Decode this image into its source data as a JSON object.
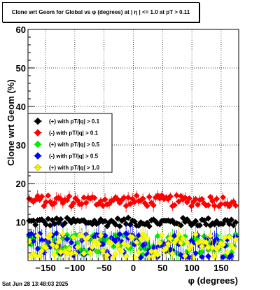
{
  "timestamp": "Sat Jun 28 13:48:03 2025",
  "chart_data": {
    "type": "scatter",
    "title": "Clone wrt Geom for Global vs φ (degrees) at | η | <= 1.0 at pT > 0.11",
    "xlabel": "φ (degrees)",
    "ylabel": "Clone wrt Geom (%)",
    "xlim": [
      -180,
      180
    ],
    "ylim": [
      0,
      60
    ],
    "xticks": [
      -150,
      -100,
      -50,
      0,
      50,
      100,
      150
    ],
    "xtick_labels": [
      "−150",
      "−100",
      "−50",
      "0",
      "50",
      "100",
      "150"
    ],
    "yticks": [
      10,
      20,
      30,
      40,
      50,
      60
    ],
    "grid": true,
    "legend_position": "middle-left",
    "series": [
      {
        "name": "(+) with pT/|q| > 0.1",
        "color": "#000000",
        "marker": "diamond",
        "mean": 10,
        "spread": 0.7,
        "err": 0.5
      },
      {
        "name": "(-) with pT/|q| > 0.1",
        "color": "#ff0000",
        "marker": "diamond",
        "mean": 15.5,
        "spread": 0.9,
        "err": 1.2
      },
      {
        "name": "(+) with pT/|q| > 0.5",
        "color": "#00ee00",
        "marker": "diamond",
        "mean": 4,
        "spread": 1.8,
        "err": 2.0
      },
      {
        "name": "(-) with pT/|q| > 0.5",
        "color": "#0000ff",
        "marker": "diamond",
        "mean": 4,
        "spread": 2.0,
        "err": 2.5
      },
      {
        "name": "(+) with pT/|q| > 1.0",
        "color": "#ffff00",
        "marker": "diamond",
        "mean": 3.8,
        "spread": 2.0,
        "err": 2.0
      }
    ]
  }
}
